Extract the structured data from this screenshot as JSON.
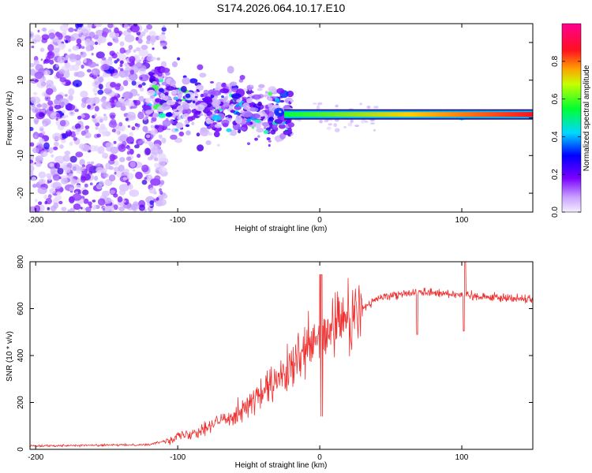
{
  "title": "S174.2026.064.10.17.E10",
  "colors": {
    "snr_line": "#ee3030",
    "background": "#ffffff",
    "axis": "#000000"
  },
  "chart_data": [
    {
      "type": "heatmap",
      "xlabel": "Height of straight line (km)",
      "ylabel": "Frequency (Hz)",
      "xlim": [
        -204,
        150
      ],
      "ylim": [
        -25,
        25
      ],
      "xticks": [
        -200,
        -100,
        0,
        100
      ],
      "yticks": [
        -20,
        -10,
        0,
        10,
        20
      ],
      "colorbar": {
        "label": "Normalized spectral amplitude",
        "range": [
          0,
          1
        ],
        "ticks": [
          0.0,
          0.2,
          0.4,
          0.6,
          0.8
        ],
        "colormap": "rainbow (violet → blue → cyan → green → yellow → red → magenta)"
      },
      "ridge": {
        "description": "dominant frequency ridge",
        "points": [
          [
            -120,
            8
          ],
          [
            -100,
            4
          ],
          [
            -80,
            2
          ],
          [
            -60,
            3
          ],
          [
            -40,
            1
          ],
          [
            -20,
            1
          ],
          [
            0,
            1
          ],
          [
            20,
            0
          ],
          [
            40,
            0.5
          ],
          [
            80,
            0.5
          ],
          [
            100,
            0.5
          ],
          [
            150,
            0.5
          ]
        ]
      }
    },
    {
      "type": "line",
      "xlabel": "Height of straight line (km)",
      "ylabel": "SNR (10 * v/v)",
      "xlim": [
        -204,
        150
      ],
      "ylim": [
        0,
        800
      ],
      "xticks": [
        -200,
        -100,
        0,
        100
      ],
      "yticks": [
        0,
        200,
        400,
        600,
        800
      ],
      "series": [
        {
          "name": "SNR",
          "x": [
            -204,
            -150,
            -120,
            -110,
            -100,
            -90,
            -80,
            -70,
            -60,
            -50,
            -40,
            -30,
            -20,
            -10,
            0,
            10,
            20,
            30,
            40,
            50,
            60,
            70,
            80,
            90,
            100,
            110,
            120,
            130,
            140,
            150
          ],
          "values": [
            15,
            18,
            20,
            35,
            55,
            70,
            95,
            120,
            150,
            190,
            240,
            290,
            340,
            420,
            460,
            520,
            560,
            600,
            640,
            660,
            665,
            670,
            670,
            665,
            660,
            655,
            650,
            645,
            645,
            640
          ]
        }
      ]
    }
  ]
}
